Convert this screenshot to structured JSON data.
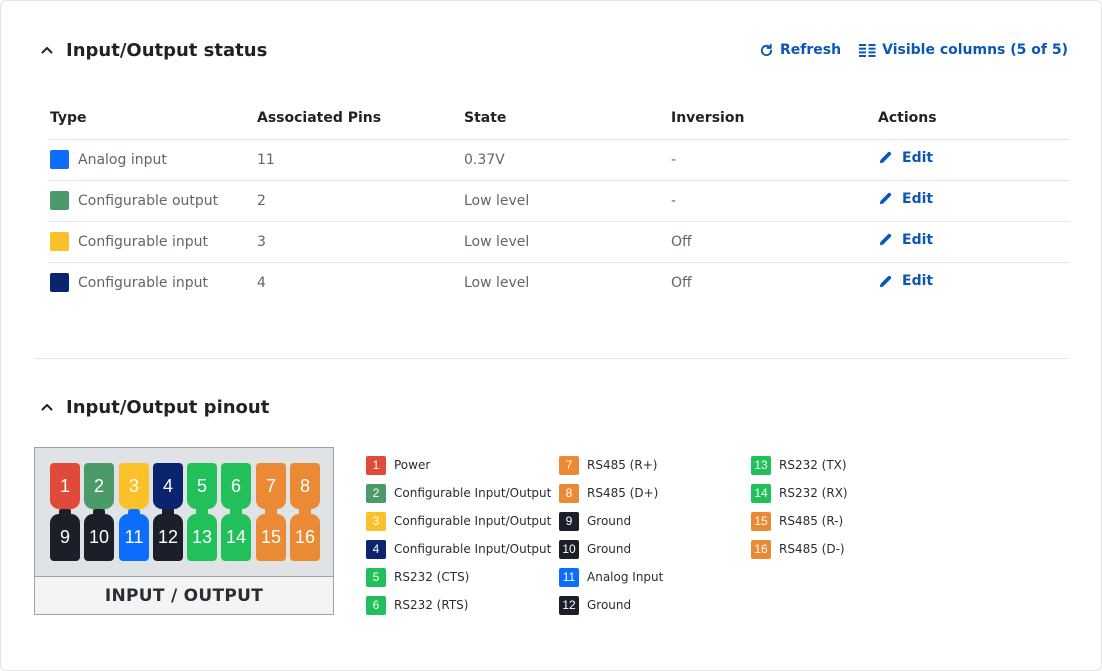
{
  "status_section": {
    "title": "Input/Output status",
    "refresh_label": "Refresh",
    "columns_label": "Visible columns (5 of 5)",
    "columns": [
      "Type",
      "Associated Pins",
      "State",
      "Inversion",
      "Actions"
    ],
    "rows": [
      {
        "type": "Analog input",
        "color": "#0d6efd",
        "pins": "11",
        "state": "0.37V",
        "inversion": "-",
        "action": "Edit"
      },
      {
        "type": "Configurable output",
        "color": "#4a9a6a",
        "pins": "2",
        "state": "Low level",
        "inversion": "-",
        "action": "Edit"
      },
      {
        "type": "Configurable input",
        "color": "#fbc12a",
        "pins": "3",
        "state": "Low level",
        "inversion": "Off",
        "action": "Edit"
      },
      {
        "type": "Configurable input",
        "color": "#0a2470",
        "pins": "4",
        "state": "Low level",
        "inversion": "Off",
        "action": "Edit"
      }
    ]
  },
  "pinout_section": {
    "title": "Input/Output pinout",
    "image_caption": "INPUT / OUTPUT",
    "top_pins": [
      {
        "num": "1",
        "color": "#e04a3a"
      },
      {
        "num": "2",
        "color": "#4a9a6a"
      },
      {
        "num": "3",
        "color": "#fbc12a"
      },
      {
        "num": "4",
        "color": "#0a2470"
      },
      {
        "num": "5",
        "color": "#22c05a"
      },
      {
        "num": "6",
        "color": "#22c05a"
      },
      {
        "num": "7",
        "color": "#ea8a35"
      },
      {
        "num": "8",
        "color": "#ea8a35"
      }
    ],
    "bottom_pins": [
      {
        "num": "9",
        "color": "#1a1f29"
      },
      {
        "num": "10",
        "color": "#1a1f29"
      },
      {
        "num": "11",
        "color": "#0d6efd"
      },
      {
        "num": "12",
        "color": "#1a1f29"
      },
      {
        "num": "13",
        "color": "#22c05a"
      },
      {
        "num": "14",
        "color": "#22c05a"
      },
      {
        "num": "15",
        "color": "#ea8a35"
      },
      {
        "num": "16",
        "color": "#ea8a35"
      }
    ],
    "legend_columns": [
      [
        {
          "num": "1",
          "label": "Power",
          "color": "#e04a3a"
        },
        {
          "num": "2",
          "label": "Configurable Input/Output",
          "color": "#4a9a6a"
        },
        {
          "num": "3",
          "label": "Configurable Input/Output",
          "color": "#fbc12a"
        },
        {
          "num": "4",
          "label": "Configurable Input/Output",
          "color": "#0a2470"
        },
        {
          "num": "5",
          "label": "RS232 (CTS)",
          "color": "#22c05a"
        },
        {
          "num": "6",
          "label": "RS232 (RTS)",
          "color": "#22c05a"
        }
      ],
      [
        {
          "num": "7",
          "label": "RS485 (R+)",
          "color": "#ea8a35"
        },
        {
          "num": "8",
          "label": "RS485 (D+)",
          "color": "#ea8a35"
        },
        {
          "num": "9",
          "label": "Ground",
          "color": "#1a1f29"
        },
        {
          "num": "10",
          "label": "Ground",
          "color": "#1a1f29"
        },
        {
          "num": "11",
          "label": "Analog Input",
          "color": "#0d6efd"
        },
        {
          "num": "12",
          "label": "Ground",
          "color": "#1a1f29"
        }
      ],
      [
        {
          "num": "13",
          "label": "RS232 (TX)",
          "color": "#22c05a"
        },
        {
          "num": "14",
          "label": "RS232 (RX)",
          "color": "#22c05a"
        },
        {
          "num": "15",
          "label": "RS485 (R-)",
          "color": "#ea8a35"
        },
        {
          "num": "16",
          "label": "RS485 (D-)",
          "color": "#ea8a35"
        }
      ]
    ]
  }
}
